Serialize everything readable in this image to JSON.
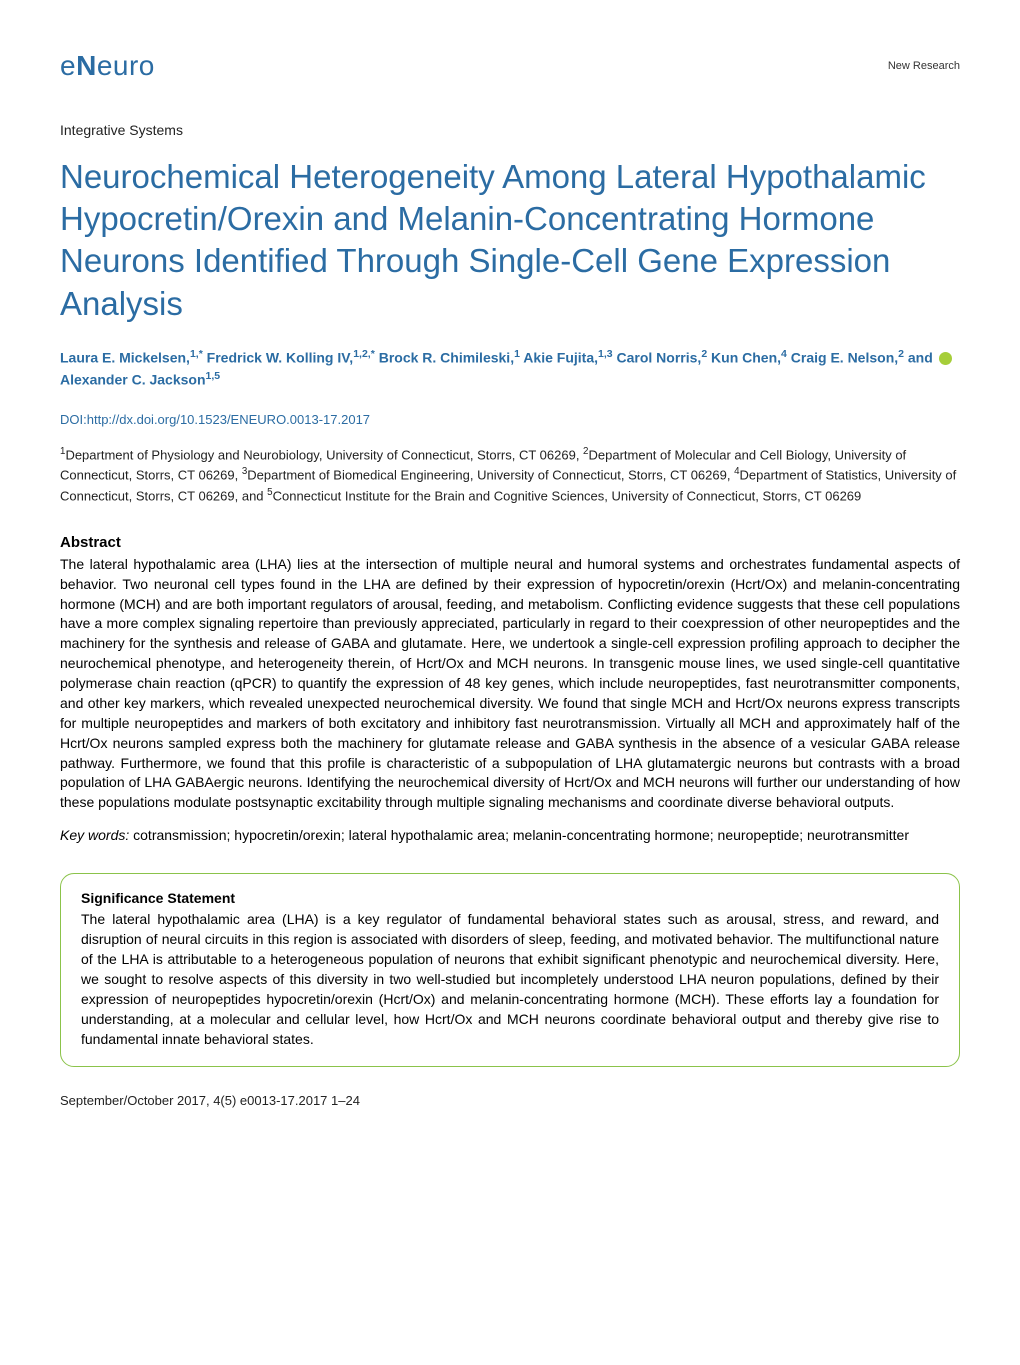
{
  "header": {
    "logo_text": "eNeuro",
    "category": "New Research"
  },
  "section_label": "Integrative Systems",
  "title": "Neurochemical Heterogeneity Among Lateral Hypothalamic Hypocretin/Orexin and Melanin-Concentrating Hormone Neurons Identified Through Single-Cell Gene Expression Analysis",
  "authors_html": "Laura E. Mickelsen,<sup>1,*</sup> Fredrick W. Kolling IV,<sup>1,2,*</sup> Brock R. Chimileski,<sup>1</sup> Akie Fujita,<sup>1,3</sup> Carol Norris,<sup>2</sup> Kun Chen,<sup>4</sup> Craig E. Nelson,<sup>2</sup> and <span class='orcid'></span>Alexander C. Jackson<sup>1,5</sup>",
  "doi": {
    "label": "DOI:",
    "link": "http://dx.doi.org/10.1523/ENEURO.0013-17.2017"
  },
  "affiliations_html": "<sup>1</sup>Department of Physiology and Neurobiology, University of Connecticut, Storrs, CT 06269, <sup>2</sup>Department of Molecular and Cell Biology, University of Connecticut, Storrs, CT 06269, <sup>3</sup>Department of Biomedical Engineering, University of Connecticut, Storrs, CT 06269, <sup>4</sup>Department of Statistics, University of Connecticut, Storrs, CT 06269, and <sup>5</sup>Connecticut Institute for the Brain and Cognitive Sciences, University of Connecticut, Storrs, CT 06269",
  "abstract": {
    "heading": "Abstract",
    "text": "The lateral hypothalamic area (LHA) lies at the intersection of multiple neural and humoral systems and orchestrates fundamental aspects of behavior. Two neuronal cell types found in the LHA are defined by their expression of hypocretin/orexin (Hcrt/Ox) and melanin-concentrating hormone (MCH) and are both important regulators of arousal, feeding, and metabolism. Conflicting evidence suggests that these cell populations have a more complex signaling repertoire than previously appreciated, particularly in regard to their coexpression of other neuropeptides and the machinery for the synthesis and release of GABA and glutamate. Here, we undertook a single-cell expression profiling approach to decipher the neurochemical phenotype, and heterogeneity therein, of Hcrt/Ox and MCH neurons. In transgenic mouse lines, we used single-cell quantitative polymerase chain reaction (qPCR) to quantify the expression of 48 key genes, which include neuropeptides, fast neurotransmitter components, and other key markers, which revealed unexpected neurochemical diversity. We found that single MCH and Hcrt/Ox neurons express transcripts for multiple neuropeptides and markers of both excitatory and inhibitory fast neurotransmission. Virtually all MCH and approximately half of the Hcrt/Ox neurons sampled express both the machinery for glutamate release and GABA synthesis in the absence of a vesicular GABA release pathway. Furthermore, we found that this profile is characteristic of a subpopulation of LHA glutamatergic neurons but contrasts with a broad population of LHA GABAergic neurons. Identifying the neurochemical diversity of Hcrt/Ox and MCH neurons will further our understanding of how these populations modulate postsynaptic excitability through multiple signaling mechanisms and coordinate diverse behavioral outputs."
  },
  "keywords": {
    "label": "Key words:",
    "text": " cotransmission; hypocretin/orexin; lateral hypothalamic area; melanin-concentrating hormone; neuropeptide; neurotransmitter"
  },
  "significance": {
    "heading": "Significance Statement",
    "text": "The lateral hypothalamic area (LHA) is a key regulator of fundamental behavioral states such as arousal, stress, and reward, and disruption of neural circuits in this region is associated with disorders of sleep, feeding, and motivated behavior. The multifunctional nature of the LHA is attributable to a heterogeneous population of neurons that exhibit significant phenotypic and neurochemical diversity. Here, we sought to resolve aspects of this diversity in two well-studied but incompletely understood LHA neuron populations, defined by their expression of neuropeptides hypocretin/orexin (Hcrt/Ox) and melanin-concentrating hormone (MCH). These efforts lay a foundation for understanding, at a molecular and cellular level, how Hcrt/Ox and MCH neurons coordinate behavioral output and thereby give rise to fundamental innate behavioral states."
  },
  "footer": "September/October 2017, 4(5) e0013-17.2017 1–24",
  "colors": {
    "link_blue": "#2b6ca3",
    "sig_border": "#8bc34a",
    "text": "#000000",
    "bg": "#ffffff"
  },
  "typography": {
    "title_fontsize": 33,
    "body_fontsize": 14,
    "small_fontsize": 13
  }
}
